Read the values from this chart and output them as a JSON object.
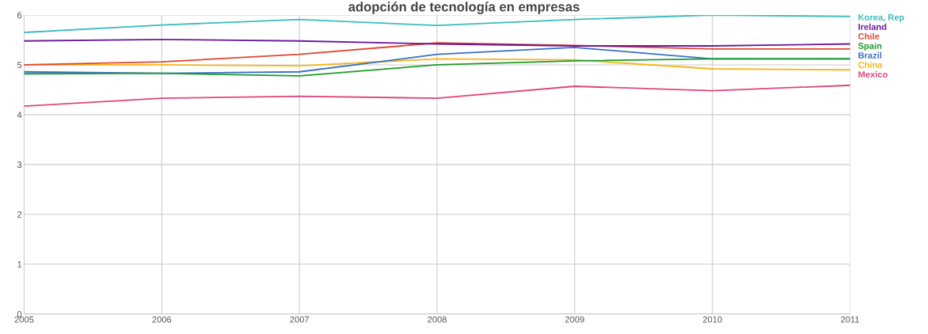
{
  "chart_data": {
    "type": "line",
    "title": "adopción de tecnología en empresas",
    "x": [
      2005,
      2006,
      2007,
      2008,
      2009,
      2010,
      2011
    ],
    "xlim": [
      2005,
      2011
    ],
    "xticks": [
      2005,
      2006,
      2007,
      2008,
      2009,
      2010,
      2011
    ],
    "ylim": [
      0,
      6
    ],
    "yticks": [
      0,
      1,
      2,
      3,
      4,
      5,
      6
    ],
    "grid": true,
    "legend": "right",
    "marker": "none",
    "line_style": "solid",
    "series": [
      {
        "name": "Korea, Rep",
        "color": "#3cbcbc",
        "values": [
          5.65,
          5.8,
          5.91,
          5.79,
          5.91,
          6.0,
          5.97
        ]
      },
      {
        "name": "Ireland",
        "color": "#6a1b9a",
        "values": [
          5.48,
          5.51,
          5.48,
          5.42,
          5.38,
          5.38,
          5.42
        ]
      },
      {
        "name": "Chile",
        "color": "#e0452f",
        "values": [
          5.0,
          5.06,
          5.21,
          5.44,
          5.39,
          5.32,
          5.32
        ]
      },
      {
        "name": "Spain",
        "color": "#1a9c2a",
        "values": [
          4.82,
          4.83,
          4.78,
          5.0,
          5.08,
          5.12,
          5.12
        ]
      },
      {
        "name": "Brazil",
        "color": "#3a6fc4",
        "values": [
          4.86,
          4.83,
          4.86,
          5.21,
          5.35,
          5.12,
          5.12
        ]
      },
      {
        "name": "China",
        "color": "#f5b71c",
        "values": [
          5.0,
          5.0,
          4.98,
          5.12,
          5.1,
          4.92,
          4.9
        ]
      },
      {
        "name": "Mexico",
        "color": "#e0457b",
        "values": [
          4.17,
          4.33,
          4.37,
          4.33,
          4.57,
          4.48,
          4.59
        ]
      }
    ]
  }
}
